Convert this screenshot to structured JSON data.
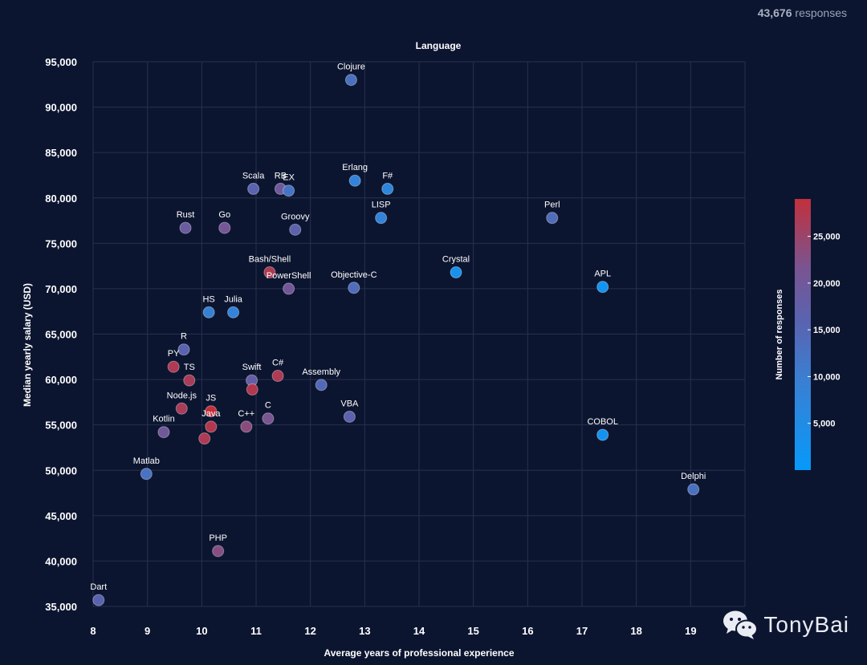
{
  "header": {
    "responses_count": "43,676",
    "responses_word": "responses"
  },
  "watermark": {
    "text": "TonyBai",
    "icon": "wechat-icon"
  },
  "colors": {
    "background": "#0c1530",
    "grid": "#26304d",
    "low": "#0798f8",
    "high": "#c0303a"
  },
  "chart_data": {
    "type": "scatter",
    "title": "Language",
    "xlabel": "Average years of professional experience",
    "ylabel": "Median yearly salary (USD)",
    "xlim": [
      8,
      20
    ],
    "ylim": [
      35000,
      95000
    ],
    "x_ticks": [
      "8",
      "9",
      "10",
      "11",
      "12",
      "13",
      "14",
      "15",
      "16",
      "17",
      "18",
      "19"
    ],
    "y_ticks": [
      "35,000",
      "40,000",
      "45,000",
      "50,000",
      "55,000",
      "60,000",
      "65,000",
      "70,000",
      "75,000",
      "80,000",
      "85,000",
      "90,000",
      "95,000"
    ],
    "grid": true,
    "colorbar": {
      "title": "Number of responses",
      "range": [
        0,
        29000
      ],
      "ticks": [
        "5,000",
        "10,000",
        "15,000",
        "20,000",
        "25,000"
      ],
      "placement": "right"
    },
    "points": [
      {
        "label": "Clojure",
        "x": 12.75,
        "y": 93000,
        "responses": 13000
      },
      {
        "label": "Scala",
        "x": 10.95,
        "y": 81000,
        "responses": 16000
      },
      {
        "label": "RB",
        "x": 11.45,
        "y": 81000,
        "responses": 20000
      },
      {
        "label": "EX",
        "x": 11.6,
        "y": 80800,
        "responses": 12000
      },
      {
        "label": "Erlang",
        "x": 12.82,
        "y": 81900,
        "responses": 8000
      },
      {
        "label": "F#",
        "x": 13.42,
        "y": 81000,
        "responses": 7000
      },
      {
        "label": "Rust",
        "x": 9.7,
        "y": 76700,
        "responses": 19000
      },
      {
        "label": "Go",
        "x": 10.42,
        "y": 76700,
        "responses": 21000
      },
      {
        "label": "Groovy",
        "x": 11.72,
        "y": 76500,
        "responses": 16500
      },
      {
        "label": "LISP",
        "x": 13.3,
        "y": 77800,
        "responses": 8000
      },
      {
        "label": "Perl",
        "x": 16.45,
        "y": 77800,
        "responses": 14000
      },
      {
        "label": "Bash/Shell",
        "x": 11.25,
        "y": 71800,
        "responses": 27000
      },
      {
        "label": "PowerShell",
        "x": 11.6,
        "y": 70000,
        "responses": 20500
      },
      {
        "label": "Objective-C",
        "x": 12.8,
        "y": 70100,
        "responses": 14000
      },
      {
        "label": "Crystal",
        "x": 14.68,
        "y": 71800,
        "responses": 3000
      },
      {
        "label": "APL",
        "x": 17.38,
        "y": 70200,
        "responses": 2000
      },
      {
        "label": "HS",
        "x": 10.13,
        "y": 67400,
        "responses": 9000
      },
      {
        "label": "Julia",
        "x": 10.58,
        "y": 67400,
        "responses": 8000
      },
      {
        "label": "R",
        "x": 9.67,
        "y": 63300,
        "responses": 16000
      },
      {
        "label": "PY",
        "x": 9.48,
        "y": 61400,
        "responses": 27000
      },
      {
        "label": "TS",
        "x": 9.77,
        "y": 59900,
        "responses": 26500
      },
      {
        "label": "Swift",
        "x": 10.92,
        "y": 59900,
        "responses": 18000
      },
      {
        "label": "",
        "x": 10.93,
        "y": 58900,
        "responses": 27500
      },
      {
        "label": "C#",
        "x": 11.4,
        "y": 60400,
        "responses": 27000
      },
      {
        "label": "Assembly",
        "x": 12.2,
        "y": 59400,
        "responses": 14500
      },
      {
        "label": "Node.js",
        "x": 9.63,
        "y": 56800,
        "responses": 26500
      },
      {
        "label": "JS",
        "x": 10.17,
        "y": 56500,
        "responses": 29000
      },
      {
        "label": "Java",
        "x": 10.17,
        "y": 54800,
        "responses": 27500
      },
      {
        "label": "",
        "x": 10.05,
        "y": 53500,
        "responses": 27000
      },
      {
        "label": "C++",
        "x": 10.82,
        "y": 54800,
        "responses": 23500
      },
      {
        "label": "C",
        "x": 11.22,
        "y": 55700,
        "responses": 21500
      },
      {
        "label": "VBA",
        "x": 12.72,
        "y": 55900,
        "responses": 16500
      },
      {
        "label": "COBOL",
        "x": 17.38,
        "y": 53900,
        "responses": 2500
      },
      {
        "label": "Kotlin",
        "x": 9.3,
        "y": 54200,
        "responses": 20000
      },
      {
        "label": "Matlab",
        "x": 8.98,
        "y": 49600,
        "responses": 12500
      },
      {
        "label": "Delphi",
        "x": 19.05,
        "y": 47900,
        "responses": 13000
      },
      {
        "label": "PHP",
        "x": 10.3,
        "y": 41100,
        "responses": 23000
      },
      {
        "label": "Dart",
        "x": 8.1,
        "y": 35700,
        "responses": 16000
      }
    ]
  }
}
